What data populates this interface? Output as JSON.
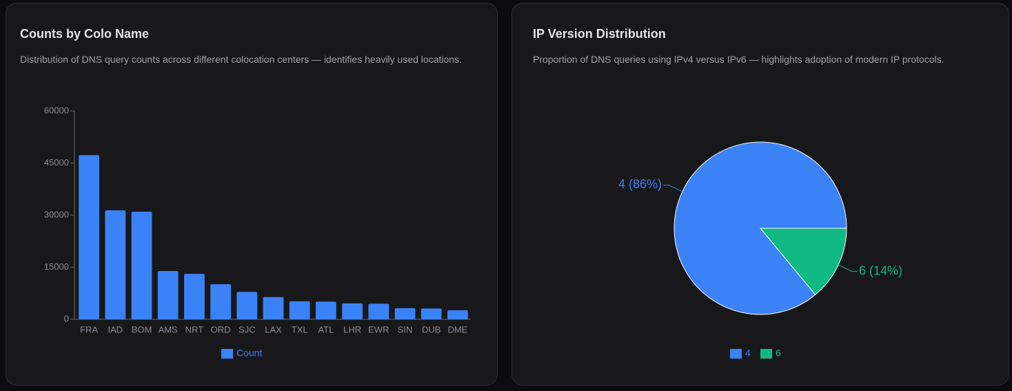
{
  "chart_data": [
    {
      "type": "bar",
      "title": "Counts by Colo Name",
      "subtitle": "Distribution of DNS query counts across different colocation centers — identifies heavily used locations.",
      "categories": [
        "FRA",
        "IAD",
        "BOM",
        "AMS",
        "NRT",
        "ORD",
        "SJC",
        "LAX",
        "TXL",
        "ATL",
        "LHR",
        "EWR",
        "SIN",
        "DUB",
        "DME"
      ],
      "series": [
        {
          "name": "Count",
          "color": "#3b82f6",
          "values": [
            47300,
            31400,
            31000,
            13900,
            13100,
            10100,
            7900,
            6400,
            5200,
            5100,
            4600,
            4500,
            3200,
            3100,
            2600
          ]
        }
      ],
      "ylim": [
        0,
        60000
      ],
      "yticks": [
        0,
        15000,
        30000,
        45000,
        60000
      ],
      "grid": false,
      "legend": "bottom"
    },
    {
      "type": "pie",
      "title": "IP Version Distribution",
      "subtitle": "Proportion of DNS queries using IPv4 versus IPv6 — highlights adoption of modern IP protocols.",
      "categories": [
        "4",
        "6"
      ],
      "values": [
        86,
        14
      ],
      "value_labels": [
        "4 (86%)",
        "6 (14%)"
      ],
      "colors": [
        "#3b82f6",
        "#10b981"
      ],
      "legend": "bottom"
    }
  ]
}
